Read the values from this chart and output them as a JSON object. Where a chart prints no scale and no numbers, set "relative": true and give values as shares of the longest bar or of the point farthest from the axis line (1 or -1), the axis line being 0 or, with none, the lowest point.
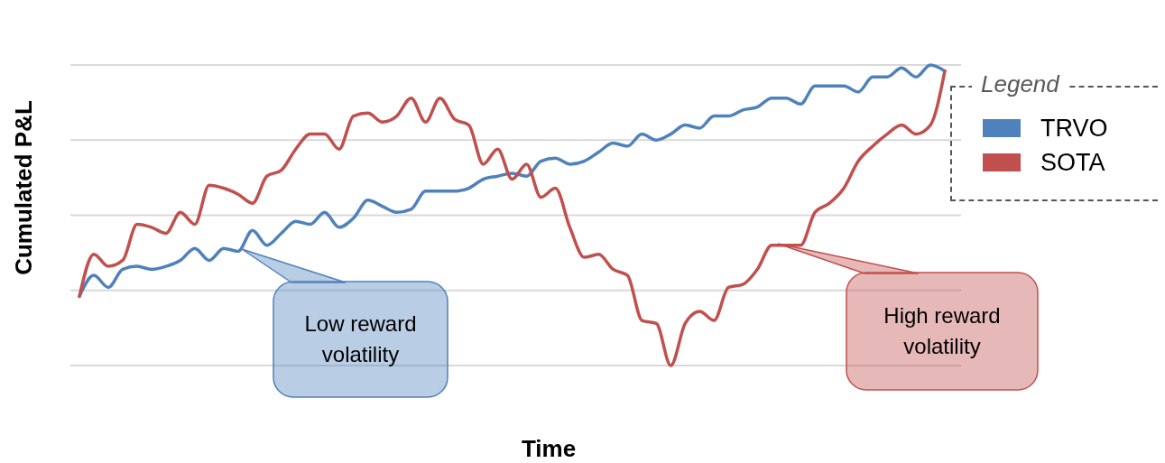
{
  "chart_data": {
    "type": "line",
    "relative": true,
    "ylabel": "Cumulated P&L",
    "xlabel": "Time",
    "legend_title": "Legend",
    "legend": "right",
    "grid": "y",
    "marker": "none",
    "line_style": "solid",
    "categories": [
      null,
      null,
      null,
      null,
      null,
      null,
      null,
      null,
      null,
      null,
      null,
      null,
      null,
      null,
      null,
      null,
      null,
      null,
      null,
      null,
      null,
      null,
      null,
      null,
      null,
      null,
      null,
      null,
      null,
      null,
      null,
      null,
      null,
      null,
      null,
      null,
      null,
      null,
      null,
      null,
      null,
      null,
      null,
      null,
      null,
      null,
      null,
      null,
      null,
      null,
      null,
      null,
      null,
      null,
      null,
      null,
      null,
      null,
      null,
      null,
      null
    ],
    "series": [
      {
        "name": "TRVO",
        "color": "#4f81bd",
        "values": [
          0.23,
          0.3,
          0.26,
          0.32,
          0.33,
          0.32,
          0.33,
          0.35,
          0.39,
          0.35,
          0.39,
          0.38,
          0.45,
          0.4,
          0.44,
          0.48,
          0.47,
          0.51,
          0.46,
          0.49,
          0.55,
          0.53,
          0.51,
          0.52,
          0.58,
          0.58,
          0.58,
          0.59,
          0.62,
          0.63,
          0.64,
          0.63,
          0.68,
          0.69,
          0.67,
          0.68,
          0.71,
          0.74,
          0.73,
          0.77,
          0.75,
          0.77,
          0.8,
          0.79,
          0.83,
          0.83,
          0.85,
          0.86,
          0.89,
          0.89,
          0.87,
          0.93,
          0.93,
          0.93,
          0.91,
          0.96,
          0.96,
          0.99,
          0.96,
          1.0,
          0.98
        ]
      },
      {
        "name": "SOTA",
        "color": "#c0504d",
        "values": [
          0.23,
          0.37,
          0.33,
          0.35,
          0.47,
          0.46,
          0.44,
          0.51,
          0.47,
          0.6,
          0.59,
          0.57,
          0.54,
          0.63,
          0.65,
          0.72,
          0.77,
          0.77,
          0.72,
          0.83,
          0.84,
          0.81,
          0.83,
          0.89,
          0.81,
          0.89,
          0.82,
          0.8,
          0.67,
          0.72,
          0.62,
          0.67,
          0.56,
          0.59,
          0.46,
          0.36,
          0.37,
          0.32,
          0.3,
          0.15,
          0.14,
          0,
          0.14,
          0.18,
          0.15,
          0.26,
          0.27,
          0.32,
          0.4,
          0.4,
          0.4,
          0.51,
          0.54,
          0.59,
          0.68,
          0.73,
          0.77,
          0.8,
          0.77,
          0.8,
          0.98
        ]
      }
    ],
    "annotations": [
      "Low reward volatility",
      "High reward volatility"
    ]
  }
}
